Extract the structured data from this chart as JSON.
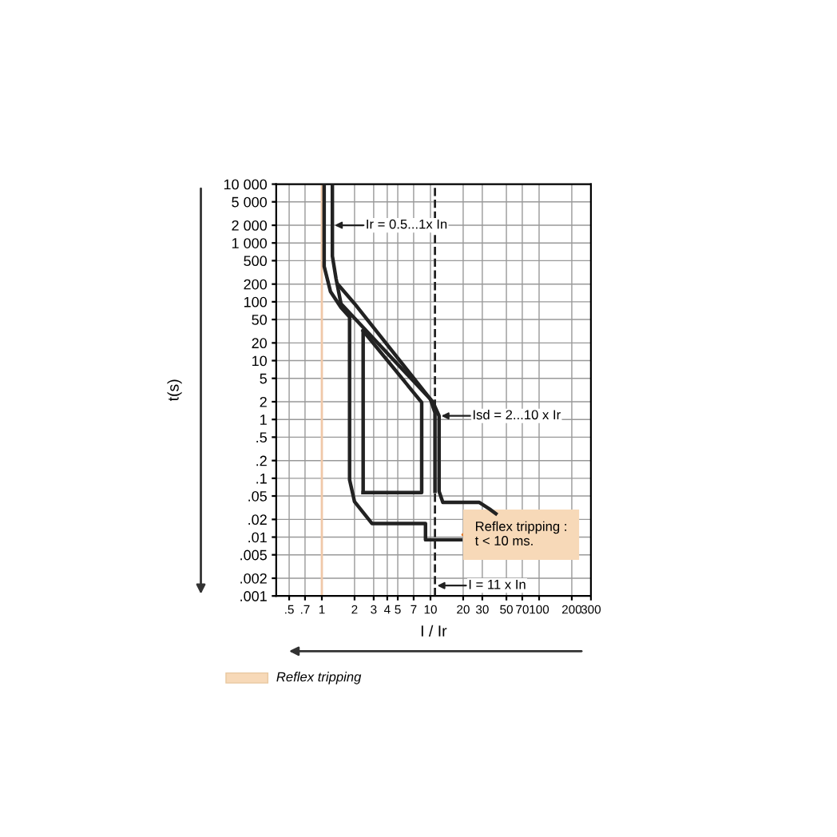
{
  "chart_data": {
    "type": "line",
    "xlabel": "I / Ir",
    "ylabel": "t(s)",
    "log": "xy",
    "grid": true,
    "marker": "none",
    "line_style": "solid",
    "series": [
      {
        "color": "#222222",
        "x": [
          1.05,
          1.05,
          1.2,
          1.5,
          1.8,
          1.8,
          2.0,
          2.9,
          9,
          9,
          19
        ],
        "values": [
          10000,
          400,
          150,
          80,
          55,
          0.094,
          0.04,
          0.017,
          0.017,
          0.009,
          0.009
        ]
      },
      {
        "color": "#222222",
        "x": [
          1.25,
          1.25,
          1.35,
          1.5,
          10.5,
          12,
          12,
          13,
          28,
          35,
          40
        ],
        "values": [
          10000,
          600,
          250,
          93,
          2,
          1.15,
          0.06,
          0.039,
          0.039,
          0.03,
          0.025
        ]
      },
      {
        "color": "#222222",
        "x": [
          1.4,
          2.0,
          10,
          11,
          11
        ],
        "values": [
          200,
          93,
          2.2,
          1.3,
          0.06
        ]
      },
      {
        "color": "#222222",
        "x": [
          2.4,
          8.3,
          8.3,
          2.4
        ],
        "values": [
          32,
          1.95,
          0.057,
          0.057
        ]
      },
      {
        "color": "#222222",
        "x": [
          2.4,
          2.4
        ],
        "values": [
          0.057,
          32
        ]
      }
    ],
    "xlim": [
      0.38,
      300
    ],
    "ylim": [
      0.001,
      10000
    ],
    "xticks": [
      {
        "value": 0.5,
        "label": ".5"
      },
      {
        "value": 0.7,
        "label": ".7"
      },
      1,
      2,
      3,
      4,
      5,
      7,
      10,
      20,
      30,
      50,
      70,
      100,
      200,
      300
    ],
    "yticks": [
      {
        "value": 0.001,
        "label": ".001"
      },
      {
        "value": 0.002,
        "label": ".002"
      },
      {
        "value": 0.005,
        "label": ".005"
      },
      {
        "value": 0.01,
        "label": ".01"
      },
      {
        "value": 0.02,
        "label": ".02"
      },
      {
        "value": 0.05,
        "label": ".05"
      },
      {
        "value": 0.1,
        "label": ".1"
      },
      {
        "value": 0.2,
        "label": ".2"
      },
      {
        "value": 0.5,
        "label": ".5"
      },
      1,
      2,
      5,
      10,
      20,
      50,
      100,
      200,
      500,
      {
        "value": 1000,
        "label": "1 000"
      },
      {
        "value": 2000,
        "label": "2 000"
      },
      {
        "value": 5000,
        "label": "5 000"
      },
      {
        "value": 10000,
        "label": "10 000"
      }
    ],
    "ref_lines": [
      {
        "axis": "x",
        "value": 11,
        "line_style": "dashed",
        "color": "#222222"
      },
      {
        "axis": "x",
        "value": 1,
        "line_style": "solid",
        "color": "#f0c8a8"
      }
    ],
    "annotations": [
      {
        "text": "Ir = 0.5...1x In",
        "x": 1.25,
        "y": 2000
      },
      {
        "text": "Isd = 2...10 x Ir",
        "x": 12,
        "y": 1.15
      },
      {
        "text": "I = 11 x In",
        "x": 11,
        "y": 0.0015
      },
      {
        "text": "Reflex tripping :\nt < 10 ms.",
        "x": 19,
        "y": 0.011
      },
      "Reflex tripping"
    ]
  }
}
